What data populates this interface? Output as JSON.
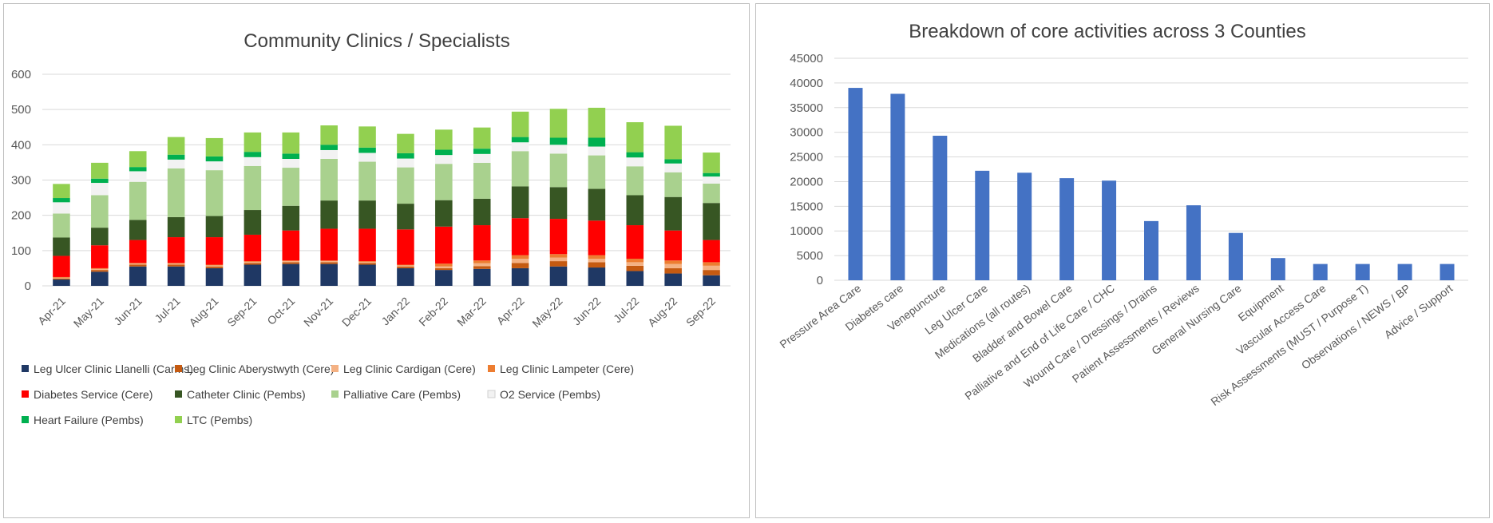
{
  "chart_data": [
    {
      "type": "bar",
      "stacked": true,
      "title": "Community Clinics / Specialists",
      "xlabel": "",
      "ylabel": "",
      "ylim": [
        0,
        600
      ],
      "yticks": [
        0,
        100,
        200,
        300,
        400,
        500,
        600
      ],
      "grid": true,
      "legend_position": "bottom",
      "categories": [
        "Apr-21",
        "May-21",
        "Jun-21",
        "Jul-21",
        "Aug-21",
        "Sep-21",
        "Oct-21",
        "Nov-21",
        "Dec-21",
        "Jan-22",
        "Feb-22",
        "Mar-22",
        "Apr-22",
        "May-22",
        "Jun-22",
        "Jul-22",
        "Aug-22",
        "Sep-22"
      ],
      "series": [
        {
          "name": "Leg Ulcer Clinic Llanelli (Carms)",
          "color": "#1f3864",
          "values": [
            18,
            40,
            55,
            55,
            50,
            60,
            62,
            62,
            60,
            50,
            45,
            48,
            50,
            55,
            52,
            42,
            35,
            30
          ]
        },
        {
          "name": "Leg Clinic Aberystwyth (Cere)",
          "color": "#c55a11",
          "values": [
            3,
            5,
            5,
            5,
            5,
            5,
            5,
            5,
            5,
            5,
            5,
            8,
            15,
            15,
            15,
            15,
            15,
            15
          ]
        },
        {
          "name": "Leg Clinic Cardigan (Cere)",
          "color": "#f4b183",
          "values": [
            2,
            3,
            3,
            3,
            3,
            3,
            3,
            3,
            3,
            3,
            5,
            8,
            12,
            10,
            10,
            10,
            12,
            12
          ]
        },
        {
          "name": "Leg Clinic Lampeter (Cere)",
          "color": "#ed7d31",
          "values": [
            2,
            2,
            2,
            2,
            2,
            2,
            2,
            2,
            2,
            2,
            8,
            8,
            10,
            10,
            10,
            10,
            10,
            10
          ]
        },
        {
          "name": "Diabetes Service (Cere)",
          "color": "#ff0000",
          "values": [
            60,
            65,
            65,
            73,
            78,
            75,
            85,
            90,
            92,
            100,
            105,
            100,
            105,
            100,
            98,
            95,
            85,
            63
          ]
        },
        {
          "name": "Catheter Clinic (Pembs)",
          "color": "#375623",
          "values": [
            52,
            50,
            57,
            57,
            60,
            70,
            70,
            80,
            80,
            73,
            75,
            75,
            90,
            90,
            90,
            85,
            95,
            105
          ]
        },
        {
          "name": "Palliative Care (Pembs)",
          "color": "#a9d18e",
          "values": [
            68,
            92,
            108,
            138,
            130,
            125,
            108,
            118,
            110,
            103,
            103,
            102,
            100,
            95,
            95,
            82,
            70,
            55
          ]
        },
        {
          "name": "O2 Service (Pembs)",
          "color": "#f2f2f2",
          "values": [
            32,
            35,
            30,
            25,
            25,
            25,
            25,
            25,
            25,
            25,
            25,
            25,
            25,
            25,
            25,
            25,
            25,
            20
          ]
        },
        {
          "name": "Heart Failure (Pembs)",
          "color": "#00b050",
          "values": [
            12,
            12,
            12,
            14,
            14,
            15,
            15,
            15,
            15,
            15,
            15,
            15,
            15,
            20,
            25,
            15,
            12,
            10
          ]
        },
        {
          "name": "LTC (Pembs)",
          "color": "#92d050",
          "values": [
            40,
            45,
            45,
            50,
            52,
            55,
            60,
            55,
            60,
            55,
            57,
            60,
            72,
            82,
            85,
            85,
            95,
            58
          ]
        }
      ]
    },
    {
      "type": "bar",
      "title": "Breakdown of core activities across 3 Counties",
      "xlabel": "",
      "ylabel": "",
      "ylim": [
        0,
        45000
      ],
      "yticks": [
        0,
        5000,
        10000,
        15000,
        20000,
        25000,
        30000,
        35000,
        40000,
        45000
      ],
      "grid": true,
      "color": "#4472c4",
      "categories": [
        "Pressure Area Care",
        "Diabetes care",
        "Venepuncture",
        "Leg Ulcer Care",
        "Medications (all routes)",
        "Bladder and Bowel Care",
        "Palliative and End of Life Care / CHC",
        "Wound Care / Dressings / Drains",
        "Patient Assessments / Reviews",
        "General Nursing Care",
        "Equipment",
        "Vascular Access Care",
        "Risk Assessments (MUST / Purpose T)",
        "Observations / NEWS / BP",
        "Advice / Support"
      ],
      "values": [
        39000,
        37800,
        29300,
        22200,
        21800,
        20700,
        20200,
        12000,
        15200,
        9600,
        4500,
        3300,
        3300,
        3300,
        3300
      ]
    }
  ]
}
